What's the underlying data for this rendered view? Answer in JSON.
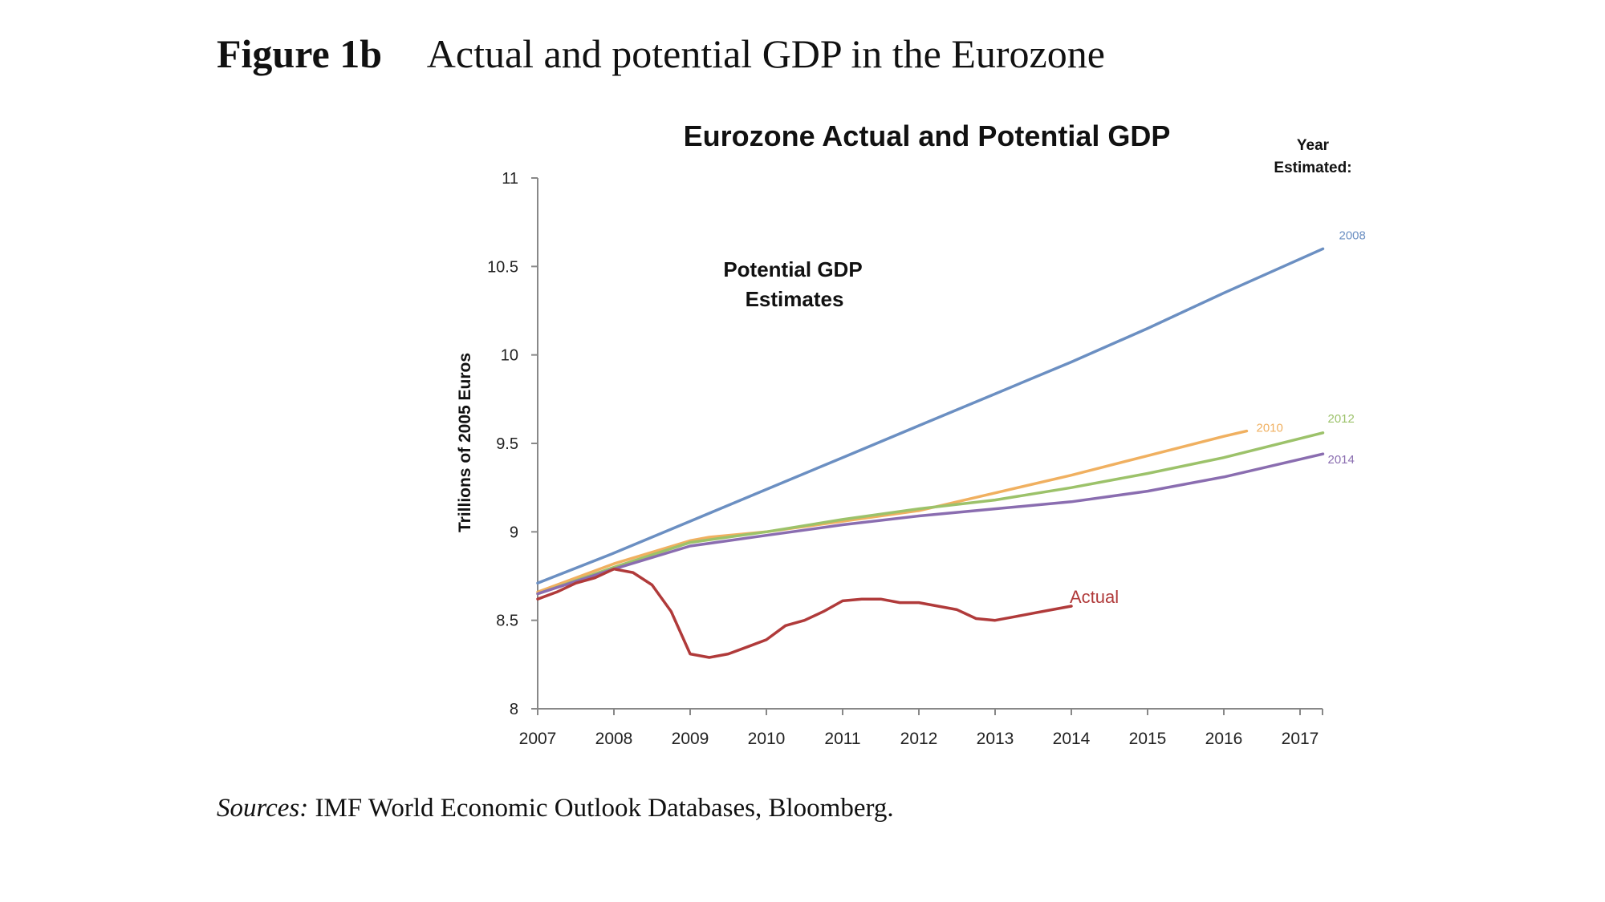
{
  "figure": {
    "label": "Figure 1b",
    "caption": "Actual and potential GDP in the Eurozone"
  },
  "sources": {
    "prefix": "Sources:",
    "text": "IMF World Economic Outlook Databases, Bloomberg."
  },
  "chart_data": {
    "type": "line",
    "title": "Eurozone Actual and Potential GDP",
    "xlabel": "",
    "ylabel": "Trillions of 2005 Euros",
    "xlim": [
      2007,
      2017.3
    ],
    "ylim": [
      8,
      11
    ],
    "x_ticks": [
      "2007",
      "2008",
      "2009",
      "2010",
      "2011",
      "2012",
      "2013",
      "2014",
      "2015",
      "2016",
      "2017"
    ],
    "y_ticks": [
      "8",
      "8.5",
      "9",
      "9.5",
      "10",
      "10.5",
      "11"
    ],
    "y_tick_values": [
      8,
      8.5,
      9,
      9.5,
      10,
      10.5,
      11
    ],
    "legend_title": [
      "Year",
      "Estimated:"
    ],
    "annotation": [
      "Potential GDP",
      "Estimates"
    ],
    "series": [
      {
        "name": "2008",
        "color": "#6b8fc2",
        "x": [
          2007,
          2008,
          2009,
          2010,
          2011,
          2012,
          2013,
          2014,
          2015,
          2016,
          2017.3
        ],
        "y": [
          8.71,
          8.88,
          9.06,
          9.24,
          9.42,
          9.6,
          9.78,
          9.96,
          10.15,
          10.35,
          10.6
        ]
      },
      {
        "name": "2010",
        "color": "#f0b060",
        "x": [
          2007,
          2008,
          2009,
          2009.25,
          2010,
          2011,
          2012,
          2013,
          2014,
          2015,
          2016,
          2016.3
        ],
        "y": [
          8.66,
          8.82,
          8.95,
          8.97,
          9.0,
          9.06,
          9.12,
          9.22,
          9.32,
          9.43,
          9.54,
          9.57
        ]
      },
      {
        "name": "2012",
        "color": "#9cc26a",
        "x": [
          2007,
          2008,
          2009,
          2010,
          2011,
          2012,
          2013,
          2014,
          2015,
          2016,
          2017.3
        ],
        "y": [
          8.65,
          8.8,
          8.94,
          9.0,
          9.07,
          9.13,
          9.18,
          9.25,
          9.33,
          9.42,
          9.56
        ]
      },
      {
        "name": "2014",
        "color": "#8a6db0",
        "x": [
          2007,
          2008,
          2009,
          2010,
          2011,
          2012,
          2013,
          2014,
          2015,
          2016,
          2017.3
        ],
        "y": [
          8.65,
          8.79,
          8.92,
          8.98,
          9.04,
          9.09,
          9.13,
          9.17,
          9.23,
          9.31,
          9.44
        ]
      },
      {
        "name": "Actual",
        "color": "#b03a3a",
        "x": [
          2007,
          2007.25,
          2007.5,
          2007.75,
          2008,
          2008.25,
          2008.5,
          2008.75,
          2009,
          2009.25,
          2009.5,
          2009.75,
          2010,
          2010.25,
          2010.5,
          2010.75,
          2011,
          2011.25,
          2011.5,
          2011.75,
          2012,
          2012.25,
          2012.5,
          2012.75,
          2013,
          2013.25,
          2013.5,
          2013.75,
          2014
        ],
        "y": [
          8.62,
          8.66,
          8.71,
          8.74,
          8.79,
          8.77,
          8.7,
          8.55,
          8.31,
          8.29,
          8.31,
          8.35,
          8.39,
          8.47,
          8.5,
          8.55,
          8.61,
          8.62,
          8.62,
          8.6,
          8.6,
          8.58,
          8.56,
          8.51,
          8.5,
          8.52,
          8.54,
          8.56,
          8.58
        ]
      }
    ]
  }
}
